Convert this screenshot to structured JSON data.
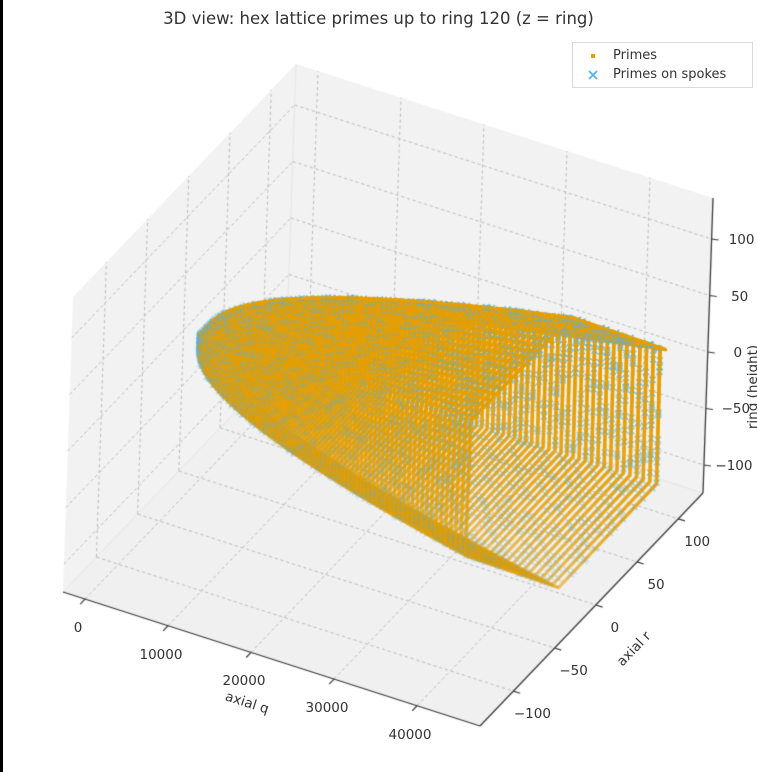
{
  "page": {
    "title": "3D view: hex lattice primes up to ring 120 (z = ring)",
    "background": "#ffffff",
    "left_edge_bar_color": "#000000"
  },
  "legend": {
    "items": [
      {
        "label": "Primes",
        "marker": "point",
        "color": "#E69F00"
      },
      {
        "label": "Primes on spokes",
        "marker": "x",
        "color": "#56B4E9"
      }
    ]
  },
  "chart_data": {
    "type": "scatter",
    "projection": "3d",
    "title": "3D view: hex lattice primes up to ring 120 (z = ring)",
    "x_axis": {
      "label": "axial q",
      "ticks": [
        0,
        10000,
        20000,
        30000,
        40000
      ],
      "lim": [
        -2650,
        47590
      ]
    },
    "y_axis": {
      "label": "axial r",
      "ticks": [
        -100,
        -50,
        0,
        50,
        100
      ],
      "lim": [
        -140.5,
        130
      ]
    },
    "z_axis": {
      "label": "ring (height)",
      "ticks": [
        -100,
        -50,
        0,
        50,
        100
      ],
      "lim": [
        -124.8,
        136.3
      ]
    },
    "series": [
      {
        "name": "Primes",
        "color": "#E69F00",
        "marker": "point",
        "marker_px": 3.8,
        "data_rule": "hex spiral lattice cells n = 1..43561 (rings 0..120) plotted at (x=n, y=axial r, z=height s=-q-r)"
      },
      {
        "name": "Primes on spokes",
        "color": "#56B4E9",
        "marker": "x",
        "marker_px": 6,
        "data_rule": "prime n among 1..43561 at same hex spiral coordinates"
      }
    ],
    "generator": {
      "max_ring": 120,
      "n_cells": 43561
    },
    "grid": true,
    "pane_color": "#f2f2f2",
    "grid_color": "#bdbdbd",
    "spine_color": "#3a3a3a",
    "depthshade": true
  }
}
